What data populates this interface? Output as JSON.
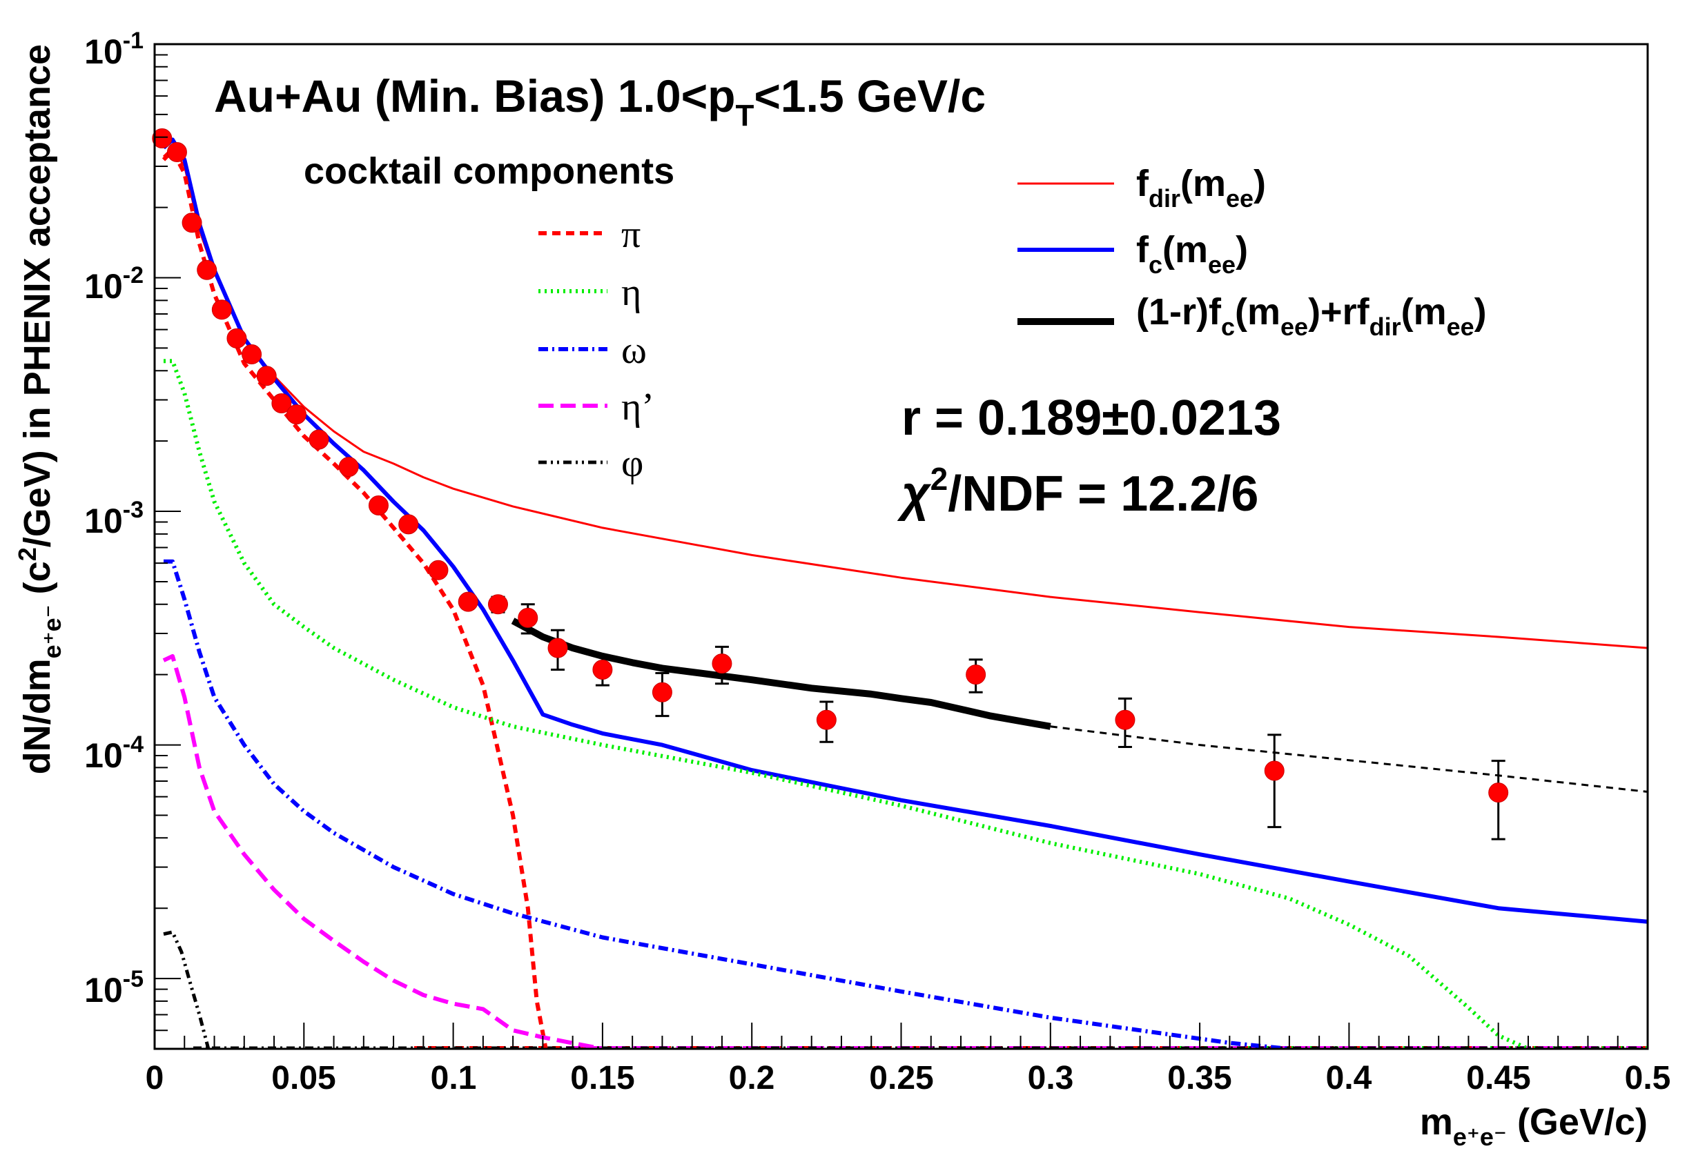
{
  "chart_data": {
    "type": "line",
    "title": "Au+Au (Min. Bias) 1.0<pT<1.5 GeV/c",
    "title_parts": {
      "main": "Au+Au (Min. Bias) 1.0<p",
      "sub": "T",
      "tail": "<1.5 GeV/c"
    },
    "xlabel": {
      "main": "m",
      "sub": "e⁺e⁻",
      "tail": " (GeV/c)"
    },
    "ylabel": {
      "pre": "dN/dm",
      "sub": "e⁺e⁻",
      "mid": " (c",
      "sup": "2",
      "post": "/GeV) in PHENIX acceptance"
    },
    "xlim": [
      0,
      0.5
    ],
    "ylim": [
      5e-06,
      0.1
    ],
    "yscale": "log",
    "x_ticks": [
      "0",
      "0.05",
      "0.1",
      "0.15",
      "0.2",
      "0.25",
      "0.3",
      "0.35",
      "0.4",
      "0.45",
      "0.5"
    ],
    "y_ticks": [
      {
        "value": 0.1,
        "base": "10",
        "exp": "-1"
      },
      {
        "value": 0.01,
        "base": "10",
        "exp": "-2"
      },
      {
        "value": 0.001,
        "base": "10",
        "exp": "-3"
      },
      {
        "value": 0.0001,
        "base": "10",
        "exp": "-4"
      },
      {
        "value": 1e-05,
        "base": "10",
        "exp": "-5"
      }
    ],
    "legend_cocktail": {
      "header": "cocktail components",
      "entries": [
        {
          "name": "π",
          "color": "#ff0000",
          "dash": "12,8",
          "width": 6
        },
        {
          "name": "η",
          "color": "#00ee00",
          "dash": "3,6",
          "width": 6
        },
        {
          "name": "ω",
          "color": "#0000ff",
          "dash": "14,6,3,6",
          "width": 6
        },
        {
          "name": "η’",
          "color": "#ff00ff",
          "dash": "22,10",
          "width": 6
        },
        {
          "name": "φ",
          "color": "#000000",
          "dash": "12,6,3,6,3,6",
          "width": 5
        }
      ]
    },
    "legend_fits": [
      {
        "label": {
          "main": "f",
          "sub": "dir",
          "tail": "(m",
          "sub2": "ee",
          "tail2": ")"
        },
        "color": "#ff0000",
        "width": 3
      },
      {
        "label": {
          "main": "f",
          "sub": "c",
          "tail": "(m",
          "sub2": "ee",
          "tail2": ")"
        },
        "color": "#0000ff",
        "width": 6
      },
      {
        "label": {
          "main": "(1-r)f",
          "sub": "c",
          "tail": "(m",
          "sub2": "ee",
          "tail2": ")+rf",
          "sub3": "dir",
          "tail3": "(m",
          "sub4": "ee",
          "tail4": ")"
        },
        "color": "#000000",
        "width": 10
      }
    ],
    "fit_result": {
      "r": "r = 0.189±0.0213",
      "chi2_symbol": "χ",
      "chi2_sup": "2",
      "chi2_rest": "/NDF = 12.2/6"
    },
    "data_points": [
      {
        "x": 0.0025,
        "y": 0.0395,
        "err": 0
      },
      {
        "x": 0.0075,
        "y": 0.0345,
        "err": 0
      },
      {
        "x": 0.0125,
        "y": 0.0172,
        "err": 0
      },
      {
        "x": 0.0175,
        "y": 0.0108,
        "err": 0
      },
      {
        "x": 0.0225,
        "y": 0.0073,
        "err": 0
      },
      {
        "x": 0.0275,
        "y": 0.0055,
        "err": 0
      },
      {
        "x": 0.0325,
        "y": 0.0047,
        "err": 0
      },
      {
        "x": 0.0375,
        "y": 0.0038,
        "err": 0
      },
      {
        "x": 0.0425,
        "y": 0.0029,
        "err": 0
      },
      {
        "x": 0.0475,
        "y": 0.0026,
        "err": 0
      },
      {
        "x": 0.055,
        "y": 0.00203,
        "err": 0
      },
      {
        "x": 0.065,
        "y": 0.00155,
        "err": 0
      },
      {
        "x": 0.075,
        "y": 0.00106,
        "err": 0
      },
      {
        "x": 0.085,
        "y": 0.00088,
        "err": 0
      },
      {
        "x": 0.095,
        "y": 0.00056,
        "err": 0
      },
      {
        "x": 0.105,
        "y": 0.00041,
        "err": 2e-05
      },
      {
        "x": 0.115,
        "y": 0.0004,
        "err": 3e-05
      },
      {
        "x": 0.125,
        "y": 0.00035,
        "err": 5e-05
      },
      {
        "x": 0.135,
        "y": 0.00026,
        "err": 5e-05
      },
      {
        "x": 0.15,
        "y": 0.00021,
        "err": 3e-05
      },
      {
        "x": 0.17,
        "y": 0.000168,
        "err": 3.5e-05
      },
      {
        "x": 0.19,
        "y": 0.000223,
        "err": 4e-05
      },
      {
        "x": 0.225,
        "y": 0.000128,
        "err": 2.5e-05
      },
      {
        "x": 0.275,
        "y": 0.0002,
        "err": 3.2e-05
      },
      {
        "x": 0.325,
        "y": 0.000128,
        "err": 3e-05
      },
      {
        "x": 0.375,
        "y": 7.75e-05,
        "err": 3.3e-05
      },
      {
        "x": 0.45,
        "y": 6.25e-05,
        "err": 2.3e-05
      }
    ],
    "series": [
      {
        "name": "f_dir(m_ee)",
        "color": "#ff0000",
        "width": 3,
        "dash": "none",
        "x": [
          0.003,
          0.006,
          0.01,
          0.015,
          0.02,
          0.03,
          0.04,
          0.05,
          0.06,
          0.07,
          0.08,
          0.09,
          0.1,
          0.12,
          0.15,
          0.2,
          0.25,
          0.3,
          0.35,
          0.4,
          0.45,
          0.5
        ],
        "y": [
          0.033,
          0.036,
          0.03,
          0.016,
          0.0105,
          0.0055,
          0.0038,
          0.0028,
          0.0022,
          0.0018,
          0.0016,
          0.0014,
          0.00125,
          0.00105,
          0.00085,
          0.00065,
          0.00052,
          0.00043,
          0.00037,
          0.00032,
          0.00029,
          0.00026
        ]
      },
      {
        "name": "f_c(m_ee)",
        "color": "#0000ff",
        "width": 6,
        "dash": "none",
        "x": [
          0.003,
          0.006,
          0.01,
          0.015,
          0.02,
          0.03,
          0.04,
          0.05,
          0.06,
          0.07,
          0.08,
          0.09,
          0.1,
          0.11,
          0.12,
          0.13,
          0.14,
          0.15,
          0.17,
          0.2,
          0.25,
          0.3,
          0.35,
          0.4,
          0.45,
          0.5
        ],
        "y": [
          0.036,
          0.039,
          0.032,
          0.017,
          0.0108,
          0.0055,
          0.0037,
          0.0026,
          0.00195,
          0.0015,
          0.0011,
          0.00083,
          0.00058,
          0.00038,
          0.00023,
          0.000135,
          0.000122,
          0.000112,
          0.0001,
          7.8e-05,
          5.8e-05,
          4.5e-05,
          3.4e-05,
          2.6e-05,
          2e-05,
          1.75e-05
        ]
      },
      {
        "name": "(1-r)f_c(m_ee)+rf_dir(m_ee)",
        "color": "#000000",
        "width": 10,
        "dash": "none",
        "x": [
          0.12,
          0.13,
          0.14,
          0.15,
          0.16,
          0.17,
          0.18,
          0.2,
          0.22,
          0.24,
          0.25,
          0.26,
          0.28,
          0.3
        ],
        "y": [
          0.00034,
          0.00029,
          0.00026,
          0.00024,
          0.000225,
          0.000213,
          0.000205,
          0.00019,
          0.000175,
          0.000165,
          0.000158,
          0.000152,
          0.000133,
          0.00012
        ]
      },
      {
        "name": "(1-r)f_c(m_ee)+rf_dir(m_ee) extrapolated",
        "color": "#000000",
        "width": 3,
        "dash": "10,8",
        "x": [
          0.3,
          0.35,
          0.4,
          0.45,
          0.5
        ],
        "y": [
          0.00012,
          0.0001,
          8.6e-05,
          7.4e-05,
          6.3e-05
        ]
      },
      {
        "name": "π",
        "color": "#ff0000",
        "width": 6,
        "dash": "12,8",
        "x": [
          0.003,
          0.006,
          0.01,
          0.015,
          0.02,
          0.03,
          0.04,
          0.05,
          0.06,
          0.07,
          0.08,
          0.09,
          0.1,
          0.11,
          0.12,
          0.125,
          0.128,
          0.131
        ],
        "y": [
          0.032,
          0.035,
          0.028,
          0.014,
          0.0085,
          0.0043,
          0.003,
          0.0021,
          0.0016,
          0.0012,
          0.00085,
          0.0006,
          0.00038,
          0.00018,
          5e-05,
          2e-05,
          8e-06,
          5e-06
        ]
      },
      {
        "name": "η",
        "color": "#00ee00",
        "width": 6,
        "dash": "3,6",
        "x": [
          0.003,
          0.006,
          0.01,
          0.015,
          0.02,
          0.03,
          0.04,
          0.05,
          0.06,
          0.08,
          0.1,
          0.12,
          0.15,
          0.2,
          0.25,
          0.3,
          0.35,
          0.38,
          0.4,
          0.42,
          0.44,
          0.45,
          0.46
        ],
        "y": [
          0.0044,
          0.0044,
          0.0032,
          0.0018,
          0.0011,
          0.0006,
          0.0004,
          0.00032,
          0.00026,
          0.00019,
          0.000145,
          0.00012,
          0.0001,
          7.6e-05,
          5.5e-05,
          3.8e-05,
          2.8e-05,
          2.2e-05,
          1.7e-05,
          1.25e-05,
          7.5e-06,
          5.7e-06,
          5e-06
        ]
      },
      {
        "name": "ω",
        "color": "#0000ff",
        "width": 6,
        "dash": "14,6,3,6",
        "x": [
          0.003,
          0.006,
          0.01,
          0.015,
          0.02,
          0.03,
          0.04,
          0.05,
          0.06,
          0.08,
          0.1,
          0.12,
          0.15,
          0.2,
          0.25,
          0.3,
          0.33,
          0.36,
          0.38
        ],
        "y": [
          0.00061,
          0.00061,
          0.00042,
          0.00025,
          0.00016,
          0.0001,
          6.8e-05,
          5.2e-05,
          4.2e-05,
          3e-05,
          2.3e-05,
          1.9e-05,
          1.5e-05,
          1.15e-05,
          8.8e-06,
          6.8e-06,
          6e-06,
          5.3e-06,
          5e-06
        ]
      },
      {
        "name": "η’",
        "color": "#ff00ff",
        "width": 6,
        "dash": "22,10",
        "x": [
          0.003,
          0.006,
          0.01,
          0.015,
          0.02,
          0.03,
          0.04,
          0.05,
          0.06,
          0.07,
          0.08,
          0.09,
          0.1,
          0.11,
          0.12,
          0.13,
          0.15
        ],
        "y": [
          0.00023,
          0.00024,
          0.00016,
          8e-05,
          5.2e-05,
          3.4e-05,
          2.4e-05,
          1.8e-05,
          1.45e-05,
          1.18e-05,
          9.8e-06,
          8.5e-06,
          7.8e-06,
          7.4e-06,
          6e-06,
          5.6e-06,
          5e-06
        ]
      },
      {
        "name": "φ",
        "color": "#000000",
        "width": 5,
        "dash": "12,6,3,6,3,6",
        "x": [
          0.003,
          0.006,
          0.009,
          0.012,
          0.015,
          0.018
        ],
        "y": [
          1.55e-05,
          1.58e-05,
          1.3e-05,
          9.5e-06,
          7e-06,
          5e-06
        ]
      }
    ]
  }
}
